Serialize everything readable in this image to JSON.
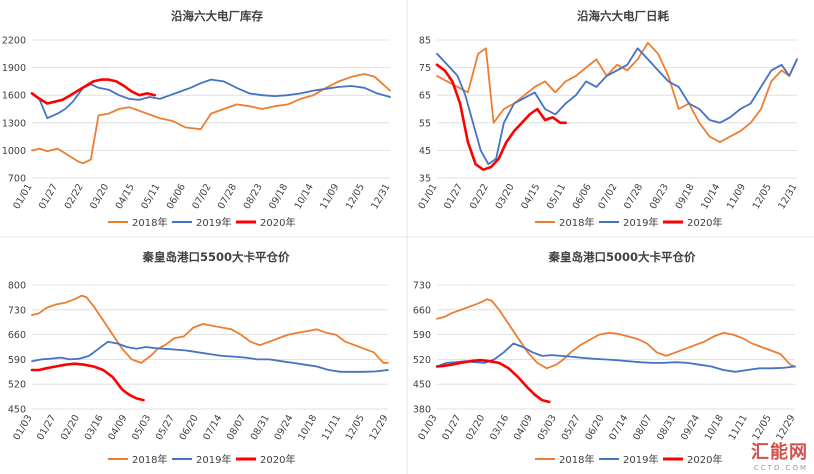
{
  "colors": {
    "y2018": "#ED7D31",
    "y2019": "#4472C4",
    "y2020": "#FF0000",
    "grid": "#D9D9D9",
    "text": "#404040"
  },
  "watermark": {
    "text": "汇能网",
    "sub": "CCTD.COM"
  },
  "chart_data": [
    {
      "type": "line",
      "title": "沿海六大电厂库存",
      "ylim": [
        700,
        2200
      ],
      "yticks": [
        700,
        1000,
        1300,
        1600,
        1900,
        2200
      ],
      "x_labels": [
        "01/01",
        "01/27",
        "02/22",
        "03/20",
        "04/15",
        "05/11",
        "06/06",
        "07/02",
        "07/28",
        "08/23",
        "09/18",
        "10/14",
        "11/09",
        "12/05",
        "12/31"
      ],
      "series": [
        {
          "name": "2018年",
          "key": "y2018",
          "x": [
            0,
            0.3,
            0.6,
            1,
            1.4,
            1.8,
            2,
            2.3,
            2.6,
            3,
            3.4,
            3.8,
            4.2,
            4.6,
            5,
            5.5,
            6,
            6.6,
            7,
            7.5,
            8,
            8.5,
            9,
            9.5,
            10,
            10.5,
            11,
            11.5,
            12,
            12.5,
            13,
            13.4,
            13.8,
            14
          ],
          "y": [
            1000,
            1020,
            990,
            1020,
            950,
            880,
            860,
            900,
            1380,
            1400,
            1450,
            1470,
            1430,
            1390,
            1350,
            1320,
            1250,
            1230,
            1400,
            1450,
            1500,
            1480,
            1450,
            1480,
            1500,
            1560,
            1600,
            1680,
            1750,
            1800,
            1830,
            1800,
            1700,
            1650
          ]
        },
        {
          "name": "2019年",
          "key": "y2019",
          "x": [
            0,
            0.3,
            0.6,
            1,
            1.3,
            1.6,
            2,
            2.3,
            2.6,
            3,
            3.4,
            3.8,
            4.2,
            4.6,
            5,
            5.4,
            5.8,
            6.2,
            6.6,
            7,
            7.5,
            8,
            8.5,
            9,
            9.5,
            10,
            10.5,
            11,
            11.5,
            12,
            12.5,
            13,
            13.5,
            14
          ],
          "y": [
            1620,
            1550,
            1350,
            1400,
            1450,
            1530,
            1680,
            1720,
            1680,
            1660,
            1600,
            1560,
            1550,
            1580,
            1560,
            1600,
            1640,
            1680,
            1730,
            1770,
            1750,
            1680,
            1620,
            1600,
            1590,
            1600,
            1620,
            1650,
            1670,
            1690,
            1700,
            1680,
            1620,
            1580
          ]
        },
        {
          "name": "2020年",
          "key": "y2020",
          "x": [
            0,
            0.3,
            0.6,
            0.9,
            1.2,
            1.5,
            1.8,
            2.1,
            2.4,
            2.7,
            3,
            3.3,
            3.6,
            3.9,
            4.2,
            4.5,
            4.8
          ],
          "y": [
            1620,
            1560,
            1510,
            1530,
            1550,
            1600,
            1650,
            1700,
            1750,
            1770,
            1770,
            1750,
            1700,
            1640,
            1600,
            1620,
            1600
          ]
        }
      ]
    },
    {
      "type": "line",
      "title": "沿海六大电厂日耗",
      "ylim": [
        35,
        85
      ],
      "yticks": [
        35,
        45,
        55,
        65,
        75,
        85
      ],
      "x_labels": [
        "01/01",
        "01/27",
        "02/22",
        "03/20",
        "04/15",
        "05/11",
        "06/06",
        "07/02",
        "07/28",
        "08/23",
        "09/18",
        "10/14",
        "11/09",
        "12/05",
        "12/31"
      ],
      "series": [
        {
          "name": "2018年",
          "key": "y2018",
          "x": [
            0,
            0.4,
            0.8,
            1.2,
            1.6,
            1.9,
            2.2,
            2.6,
            3,
            3.4,
            3.8,
            4.2,
            4.6,
            5,
            5.4,
            5.8,
            6.2,
            6.6,
            7,
            7.4,
            7.8,
            8.2,
            8.6,
            9,
            9.4,
            9.8,
            10.2,
            10.6,
            11,
            11.4,
            11.8,
            12.2,
            12.6,
            13,
            13.4,
            13.7,
            14
          ],
          "y": [
            72,
            70,
            68,
            66,
            80,
            82,
            55,
            60,
            62,
            65,
            68,
            70,
            66,
            70,
            72,
            75,
            78,
            72,
            76,
            74,
            78,
            84,
            80,
            72,
            60,
            62,
            55,
            50,
            48,
            50,
            52,
            55,
            60,
            70,
            74,
            72,
            78
          ]
        },
        {
          "name": "2019年",
          "key": "y2019",
          "x": [
            0,
            0.4,
            0.8,
            1.1,
            1.4,
            1.7,
            2,
            2.3,
            2.6,
            3,
            3.4,
            3.8,
            4.2,
            4.6,
            5,
            5.4,
            5.8,
            6.2,
            6.6,
            7,
            7.4,
            7.8,
            8.2,
            8.6,
            9,
            9.4,
            9.8,
            10.2,
            10.6,
            11,
            11.4,
            11.8,
            12.2,
            12.6,
            13,
            13.4,
            13.7,
            14
          ],
          "y": [
            80,
            76,
            72,
            65,
            55,
            45,
            40,
            42,
            55,
            62,
            64,
            66,
            60,
            58,
            62,
            65,
            70,
            68,
            72,
            74,
            76,
            82,
            78,
            74,
            70,
            68,
            62,
            60,
            56,
            55,
            57,
            60,
            62,
            68,
            74,
            76,
            72,
            78
          ]
        },
        {
          "name": "2020年",
          "key": "y2020",
          "x": [
            0,
            0.3,
            0.6,
            0.9,
            1.2,
            1.5,
            1.8,
            2.1,
            2.4,
            2.7,
            3,
            3.3,
            3.6,
            3.9,
            4.2,
            4.5,
            4.8,
            5
          ],
          "y": [
            76,
            74,
            70,
            62,
            48,
            40,
            38,
            39,
            42,
            48,
            52,
            55,
            58,
            60,
            56,
            57,
            55,
            55
          ]
        }
      ]
    },
    {
      "type": "line",
      "title": "秦皇岛港口5500大卡平仓价",
      "ylim": [
        450,
        800
      ],
      "yticks": [
        450,
        520,
        590,
        660,
        730,
        800
      ],
      "x_labels": [
        "01/03",
        "01/27",
        "02/20",
        "03/16",
        "04/09",
        "05/03",
        "05/27",
        "06/20",
        "07/14",
        "08/07",
        "08/31",
        "09/24",
        "10/18",
        "11/11",
        "12/05",
        "12/29"
      ],
      "series": [
        {
          "name": "2018年",
          "key": "y2018",
          "x": [
            0,
            0.3,
            0.6,
            1,
            1.4,
            1.8,
            2.1,
            2.3,
            2.6,
            3,
            3.4,
            3.8,
            4.2,
            4.6,
            5,
            5.3,
            5.6,
            6,
            6.4,
            6.8,
            7.2,
            7.6,
            8,
            8.4,
            8.8,
            9.2,
            9.6,
            10,
            10.4,
            10.8,
            11.2,
            11.6,
            12,
            12.4,
            12.8,
            13.2,
            13.6,
            14,
            14.4,
            14.8,
            15
          ],
          "y": [
            715,
            720,
            735,
            745,
            750,
            760,
            770,
            765,
            740,
            700,
            660,
            620,
            590,
            580,
            600,
            620,
            630,
            650,
            655,
            680,
            690,
            685,
            680,
            675,
            660,
            640,
            630,
            640,
            650,
            660,
            665,
            670,
            675,
            665,
            660,
            640,
            630,
            620,
            610,
            580,
            580
          ]
        },
        {
          "name": "2019年",
          "key": "y2019",
          "x": [
            0,
            0.4,
            0.8,
            1.2,
            1.6,
            2,
            2.4,
            2.8,
            3.2,
            3.6,
            4,
            4.4,
            4.8,
            5.2,
            5.6,
            6,
            6.5,
            7,
            7.5,
            8,
            8.5,
            9,
            9.5,
            10,
            10.5,
            11,
            11.5,
            12,
            12.5,
            13,
            13.5,
            14,
            14.5,
            15
          ],
          "y": [
            585,
            590,
            592,
            595,
            590,
            592,
            600,
            620,
            640,
            635,
            625,
            620,
            625,
            622,
            620,
            618,
            615,
            610,
            605,
            600,
            598,
            595,
            590,
            590,
            585,
            580,
            575,
            570,
            560,
            555,
            555,
            555,
            556,
            560
          ]
        },
        {
          "name": "2020年",
          "key": "y2020",
          "x": [
            0,
            0.3,
            0.6,
            1,
            1.4,
            1.8,
            2.2,
            2.6,
            3,
            3.4,
            3.8,
            4.1,
            4.4,
            4.7
          ],
          "y": [
            560,
            560,
            565,
            570,
            575,
            578,
            575,
            570,
            560,
            540,
            505,
            490,
            480,
            475
          ]
        }
      ]
    },
    {
      "type": "line",
      "title": "秦皇岛港口5000大卡平仓价",
      "ylim": [
        380,
        730
      ],
      "yticks": [
        380,
        450,
        520,
        590,
        660,
        730
      ],
      "x_labels": [
        "01/03",
        "01/27",
        "02/20",
        "03/16",
        "04/09",
        "05/03",
        "05/27",
        "06/20",
        "07/14",
        "08/07",
        "08/31",
        "09/24",
        "10/18",
        "11/11",
        "12/05",
        "12/29"
      ],
      "series": [
        {
          "name": "2018年",
          "key": "y2018",
          "x": [
            0,
            0.3,
            0.6,
            1,
            1.4,
            1.8,
            2.1,
            2.3,
            2.6,
            3,
            3.4,
            3.8,
            4.2,
            4.6,
            5,
            5.3,
            5.6,
            6,
            6.4,
            6.8,
            7.2,
            7.6,
            8,
            8.4,
            8.8,
            9.2,
            9.6,
            10,
            10.4,
            10.8,
            11.2,
            11.6,
            12,
            12.4,
            12.8,
            13.2,
            13.6,
            14,
            14.4,
            14.8,
            15
          ],
          "y": [
            635,
            640,
            650,
            660,
            670,
            680,
            690,
            685,
            660,
            620,
            580,
            540,
            510,
            495,
            505,
            520,
            540,
            560,
            575,
            590,
            595,
            592,
            585,
            578,
            565,
            540,
            530,
            540,
            550,
            560,
            570,
            585,
            595,
            590,
            580,
            565,
            555,
            545,
            535,
            505,
            500
          ]
        },
        {
          "name": "2019年",
          "key": "y2019",
          "x": [
            0,
            0.4,
            0.8,
            1.2,
            1.6,
            2,
            2.4,
            2.8,
            3.2,
            3.6,
            4,
            4.4,
            4.8,
            5.2,
            5.6,
            6,
            6.5,
            7,
            7.5,
            8,
            8.5,
            9,
            9.5,
            10,
            10.5,
            11,
            11.5,
            12,
            12.5,
            13,
            13.5,
            14,
            14.5,
            15
          ],
          "y": [
            500,
            510,
            512,
            515,
            512,
            510,
            520,
            540,
            565,
            555,
            540,
            530,
            532,
            530,
            528,
            525,
            522,
            520,
            518,
            515,
            512,
            510,
            510,
            512,
            510,
            505,
            500,
            490,
            485,
            490,
            495,
            495,
            496,
            500
          ]
        },
        {
          "name": "2020年",
          "key": "y2020",
          "x": [
            0,
            0.3,
            0.6,
            1,
            1.4,
            1.8,
            2.2,
            2.6,
            3,
            3.4,
            3.8,
            4.1,
            4.4,
            4.7
          ],
          "y": [
            500,
            502,
            505,
            510,
            515,
            518,
            515,
            510,
            495,
            470,
            440,
            420,
            405,
            400
          ]
        }
      ]
    }
  ]
}
